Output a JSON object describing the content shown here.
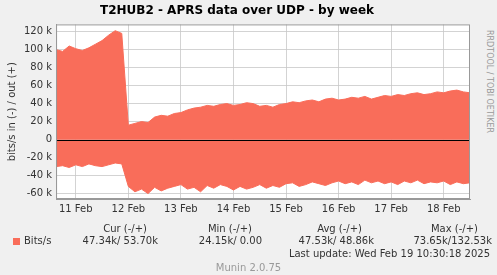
{
  "chart_data": {
    "type": "area",
    "title": "T2HUB2 - APRS data over UDP - by week",
    "y_label": "bits/s in (-) / out (+)",
    "categories": [
      null,
      null,
      null,
      "11 Feb",
      null,
      null,
      null,
      null,
      null,
      null,
      null,
      "12 Feb",
      null,
      null,
      null,
      null,
      null,
      null,
      null,
      "13 Feb",
      null,
      null,
      null,
      null,
      null,
      null,
      null,
      "14 Feb",
      null,
      null,
      null,
      null,
      null,
      null,
      null,
      "15 Feb",
      null,
      null,
      null,
      null,
      null,
      null,
      null,
      "16 Feb",
      null,
      null,
      null,
      null,
      null,
      null,
      null,
      "17 Feb",
      null,
      null,
      null,
      null,
      null,
      null,
      null,
      "18 Feb",
      null,
      null,
      null,
      null
    ],
    "series": [
      {
        "name": "Bits/s",
        "color": "#f96d5a",
        "values": [
          100000,
          98000,
          104000,
          101000,
          99000,
          102000,
          106000,
          110000,
          116000,
          121000,
          118000,
          16000,
          18000,
          20000,
          19000,
          25000,
          27000,
          26000,
          29000,
          30000,
          33000,
          35000,
          36000,
          38000,
          37000,
          39000,
          40000,
          38000,
          39000,
          41000,
          40000,
          37000,
          38000,
          36000,
          39000,
          40000,
          42000,
          41000,
          43000,
          44000,
          42000,
          45000,
          46000,
          44000,
          45000,
          47000,
          46000,
          48000,
          45000,
          47000,
          49000,
          48000,
          50000,
          49000,
          51000,
          52000,
          50000,
          51000,
          53000,
          52000,
          54000,
          55000,
          53000,
          52000
        ],
        "in_values": [
          -30000,
          -29000,
          -31000,
          -28000,
          -30000,
          -27000,
          -29000,
          -30000,
          -28000,
          -26000,
          -27000,
          -52000,
          -58000,
          -55000,
          -60000,
          -53000,
          -57000,
          -54000,
          -52000,
          -50000,
          -55000,
          -53000,
          -58000,
          -51000,
          -54000,
          -50000,
          -52000,
          -56000,
          -52000,
          -55000,
          -53000,
          -50000,
          -54000,
          -51000,
          -53000,
          -49000,
          -48000,
          -52000,
          -50000,
          -47000,
          -49000,
          -51000,
          -48000,
          -46000,
          -49000,
          -47000,
          -50000,
          -45000,
          -48000,
          -46000,
          -49000,
          -47000,
          -50000,
          -46000,
          -48000,
          -45000,
          -49000,
          -47000,
          -48000,
          -46000,
          -50000,
          -47000,
          -49000,
          -48000
        ]
      }
    ],
    "ylim": [
      -66000,
      128000
    ],
    "yticks": [
      {
        "value": -60000,
        "label": "-60 k"
      },
      {
        "value": -40000,
        "label": "-40 k"
      },
      {
        "value": -20000,
        "label": "-20 k"
      },
      0,
      {
        "value": 20000,
        "label": "20 k"
      },
      {
        "value": 40000,
        "label": "40 k"
      },
      {
        "value": 60000,
        "label": "60 k"
      },
      {
        "value": 80000,
        "label": "80 k"
      },
      {
        "value": 100000,
        "label": "100 k"
      },
      {
        "value": 120000,
        "label": "120 k"
      }
    ],
    "grid": true,
    "legend": "bottom-left",
    "stats": {
      "headers": [
        "Cur (-/+)",
        "Min (-/+)",
        "Avg (-/+)",
        "Max (-/+)"
      ],
      "cells": [
        "47.34k/ 53.70k",
        "24.15k/ 0.00",
        "47.53k/ 48.86k",
        "73.65k/132.53k"
      ]
    },
    "last_update": "Last update: Wed Feb 19 10:30:18 2025",
    "credit": "Munin 2.0.75",
    "watermark": "RRDTOOL / TOBI OETIKER"
  }
}
